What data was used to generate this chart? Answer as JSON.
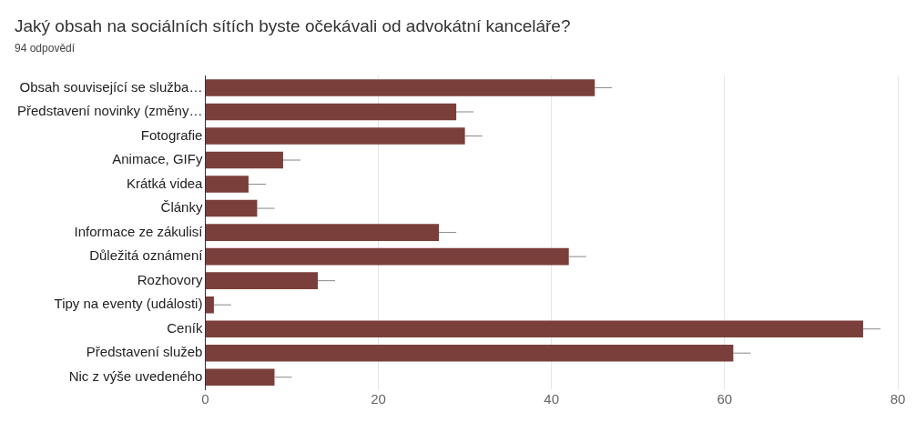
{
  "chart_data": {
    "type": "bar",
    "orientation": "horizontal",
    "title": "Jaký obsah na sociálních sítích byste očekávali od advokátní kanceláře?",
    "subtitle": "94 odpovědí",
    "categories": [
      "Obsah související se služba…",
      "Představení novinky (změny…",
      "Fotografie",
      "Animace, GIFy",
      "Krátká videa",
      "Články",
      "Informace ze zákulisí",
      "Důležitá oznámení",
      "Rozhovory",
      "Tipy na eventy (události)",
      "Ceník",
      "Představení služeb",
      "Nic z výše uvedeného"
    ],
    "values": [
      45,
      29,
      30,
      9,
      5,
      6,
      27,
      42,
      13,
      1,
      76,
      61,
      8
    ],
    "errors": [
      [
        45,
        47
      ],
      [
        29,
        31
      ],
      [
        30,
        32
      ],
      [
        9,
        11
      ],
      [
        5,
        7
      ],
      [
        6,
        8
      ],
      [
        27,
        29
      ],
      [
        42,
        44
      ],
      [
        13,
        15
      ],
      [
        1,
        3
      ],
      [
        76,
        78
      ],
      [
        61,
        63
      ],
      [
        8,
        10
      ]
    ],
    "color": "#7b3f3b",
    "xlim": [
      0,
      80
    ],
    "xticks": [
      0,
      20,
      40,
      60,
      80
    ],
    "grid": "x",
    "legend": false
  }
}
